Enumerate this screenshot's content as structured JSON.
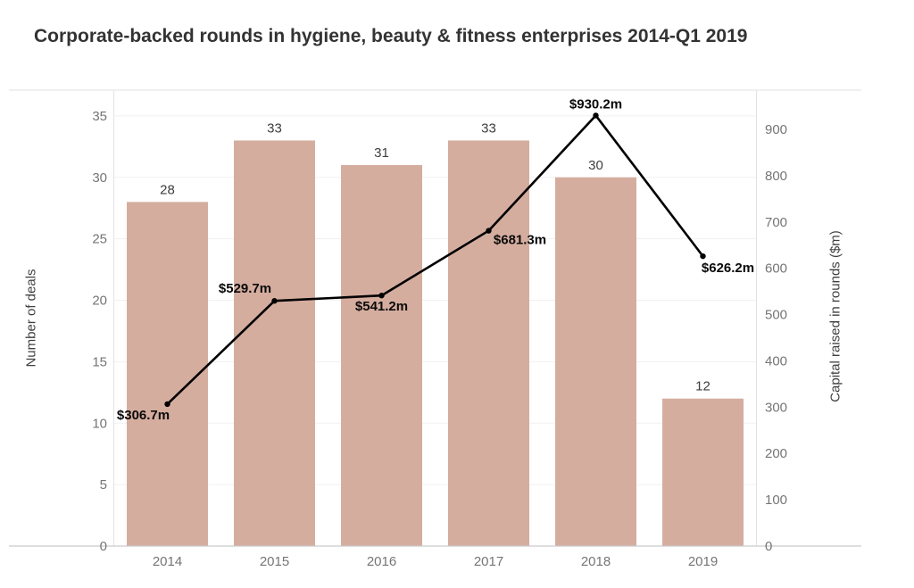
{
  "title": "Corporate-backed rounds in hygiene, beauty & fitness enterprises 2014-Q1 2019",
  "left_axis": {
    "label": "Number of deals",
    "ticks": [
      0,
      5,
      10,
      15,
      20,
      25,
      30,
      35
    ]
  },
  "right_axis": {
    "label": "Capital raised in rounds ($m)",
    "ticks": [
      0,
      100,
      200,
      300,
      400,
      500,
      600,
      700,
      800,
      900
    ]
  },
  "colors": {
    "bar": "#d5ad9f",
    "line": "#000000",
    "bar_label": "#3d3d3d",
    "line_label": "#0a0a0a",
    "tick_label": "#757575",
    "gridline": "#f1f1f1",
    "border_light": "#e2e2e2",
    "baseline": "#c9c9c9",
    "title": "#333333"
  },
  "chart_data": {
    "type": "combo",
    "categories": [
      "2014",
      "2015",
      "2016",
      "2017",
      "2018",
      "2019"
    ],
    "series": [
      {
        "name": "Number of deals",
        "type": "bar",
        "axis": "left",
        "values": [
          28,
          33,
          31,
          33,
          30,
          12
        ],
        "labels": [
          "28",
          "33",
          "31",
          "33",
          "30",
          "12"
        ]
      },
      {
        "name": "Capital raised in rounds ($m)",
        "type": "line",
        "axis": "right",
        "values": [
          306.7,
          529.7,
          541.2,
          681.3,
          930.2,
          626.2
        ],
        "labels": [
          "$306.7m",
          "$529.7m",
          "$541.2m",
          "$681.3m",
          "$930.2m",
          "$626.2m"
        ]
      }
    ],
    "title": "Corporate-backed rounds in hygiene, beauty & fitness enterprises 2014-Q1 2019",
    "xlabel": "",
    "ylabel_left": "Number of deals",
    "ylabel_right": "Capital raised in rounds ($m)",
    "left_ylim": [
      0,
      37.1
    ],
    "right_ylim": [
      0,
      985
    ],
    "grid": "horizontal-left-ticks",
    "legend": "none"
  }
}
